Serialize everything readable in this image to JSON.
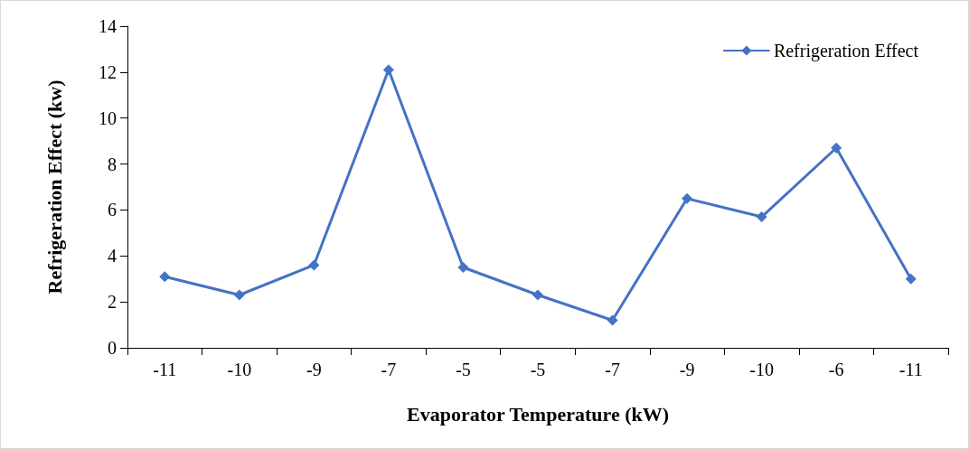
{
  "chart_data": {
    "type": "line",
    "xlabel": "Evaporator Temperature (kW)",
    "ylabel": "Refrigeration Effect (kw)",
    "categories": [
      "-11",
      "-10",
      "-9",
      "-7",
      "-5",
      "-5",
      "-7",
      "-9",
      "-10",
      "-6",
      "-11"
    ],
    "series": [
      {
        "name": "Refrigeration Effect",
        "color": "#4472c4",
        "values": [
          3.1,
          2.3,
          3.6,
          12.1,
          3.5,
          2.3,
          1.2,
          6.5,
          5.7,
          8.7,
          3.0
        ]
      }
    ],
    "ylim": [
      0,
      14
    ],
    "yticks": [
      0,
      2,
      4,
      6,
      8,
      10,
      12,
      14
    ],
    "grid": false,
    "legend": "top right",
    "marker": "diamond",
    "line_style": "solid"
  }
}
